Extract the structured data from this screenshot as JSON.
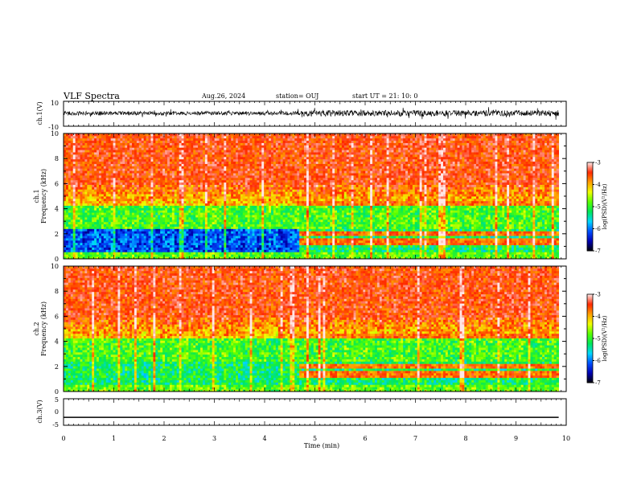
{
  "header": {
    "title": "VLF Spectra",
    "date": "Aug.26, 2024",
    "station": "station= OUJ",
    "start": "start  UT  =   21: 10: 0"
  },
  "chart_data": [
    {
      "type": "line",
      "panel": "ch1-waveform",
      "ylabel": "ch.1(V)",
      "ylim": [
        -10,
        10
      ],
      "y_ticks": [
        "10",
        "-10"
      ],
      "xlim": [
        0,
        10
      ],
      "description_level": "noisy trace centred slightly above 0 with amplitude about ±2 V"
    },
    {
      "type": "heatmap",
      "panel": "ch1-spectrogram",
      "ylabel": "ch.1\nFrequency  (kHz)",
      "ylim": [
        0,
        10
      ],
      "y_ticks": [
        "0",
        "2",
        "4",
        "6",
        "8",
        "10"
      ],
      "xlim": [
        0,
        10
      ],
      "colorbar": {
        "label": "log(PSD)(V²/Hz)",
        "range": [
          -7,
          -3
        ],
        "ticks": [
          "-3",
          "-4",
          "-5",
          "-6",
          "-7"
        ]
      }
    },
    {
      "type": "heatmap",
      "panel": "ch2-spectrogram",
      "ylabel": "ch.2\nFrequency  (kHz)",
      "ylim": [
        0,
        10
      ],
      "y_ticks": [
        "0",
        "2",
        "4",
        "6",
        "8",
        "10"
      ],
      "xlim": [
        0,
        10
      ],
      "colorbar": {
        "label": "log(PSD)(V²/Hz)",
        "range": [
          -7,
          -3
        ],
        "ticks": [
          "-3",
          "-4",
          "-5",
          "-6",
          "-7"
        ]
      }
    },
    {
      "type": "line",
      "panel": "ch3-waveform",
      "ylabel": "ch.3(V)",
      "ylim": [
        -5,
        5
      ],
      "y_ticks": [
        "5",
        "0",
        "-5"
      ],
      "xlim": [
        0,
        10
      ],
      "series": [
        {
          "x": [
            0,
            9.85
          ],
          "y": [
            -2,
            -2
          ]
        }
      ]
    }
  ],
  "xaxis": {
    "label": "Time  (min)",
    "range": [
      0,
      10
    ],
    "ticks": [
      "0",
      "1",
      "2",
      "3",
      "4",
      "5",
      "6",
      "7",
      "8",
      "9",
      "10"
    ]
  },
  "colors": {
    "frame": "#000000",
    "colormap": [
      "#000000",
      "#0000b4",
      "#0050ff",
      "#00d7ff",
      "#00e85a",
      "#58ff00",
      "#f0ff00",
      "#ffa000",
      "#ff2800",
      "#ffe6e6"
    ]
  }
}
